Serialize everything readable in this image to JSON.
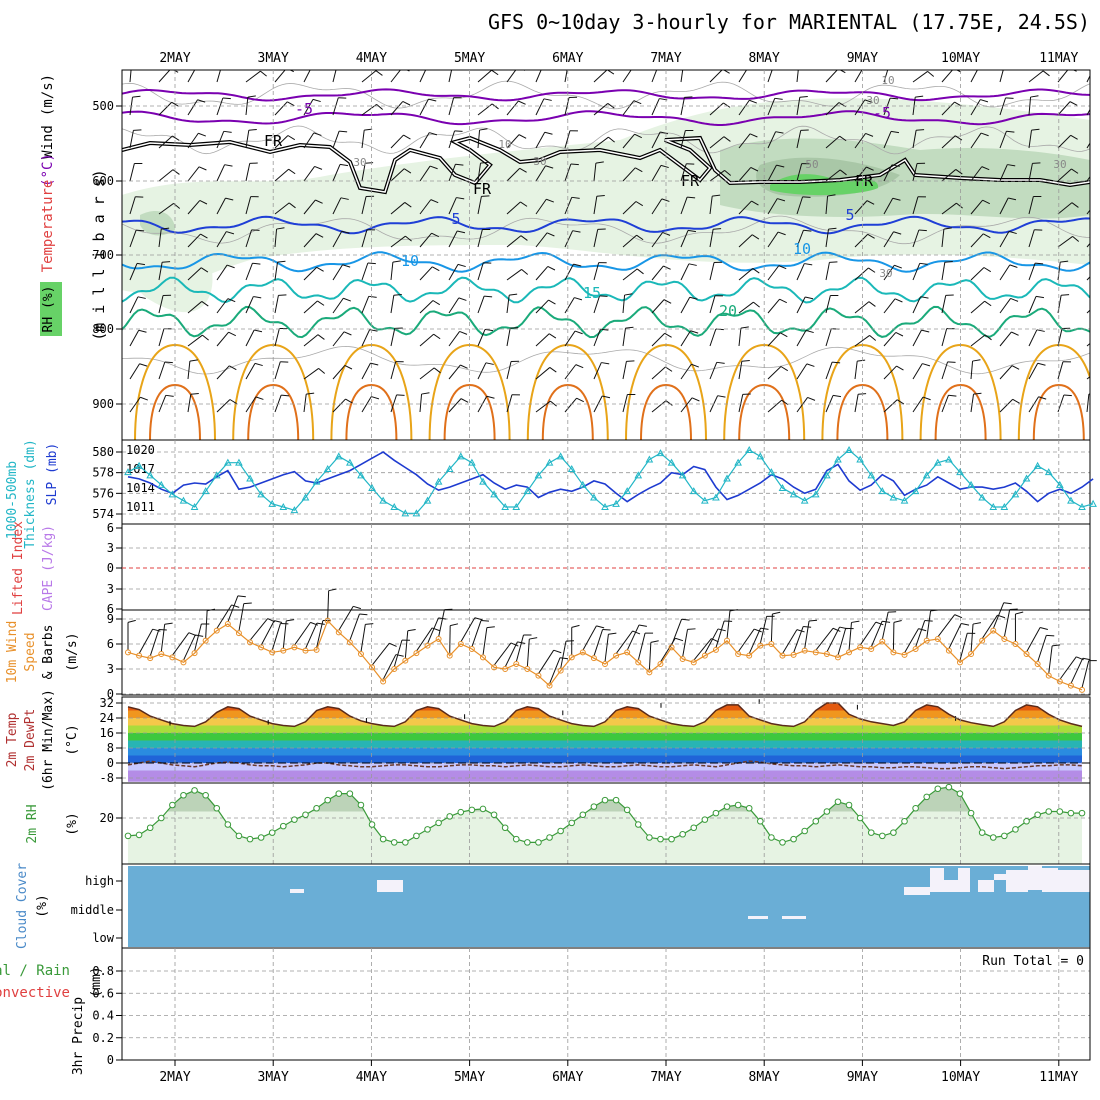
{
  "title": "GFS 0~10day 3-hourly for MARIENTAL (17.75E, 24.5S)",
  "dates": [
    "2MAY",
    "3MAY",
    "4MAY",
    "5MAY",
    "6MAY",
    "7MAY",
    "8MAY",
    "9MAY",
    "10MAY",
    "11MAY"
  ],
  "colors": {
    "rh_light": "#e6f3e3",
    "rh_mid": "#c2dcc0",
    "rh_dark": "#a9c7a7",
    "rh_green": "#67d267",
    "t_neg": "#7a00b0",
    "t_5": "#1f3fd6",
    "t_10": "#1896e6",
    "t_15": "#1ab8b8",
    "t_20": "#1aaa7a",
    "t_warm1": "#e8a418",
    "t_warm2": "#e0701a",
    "thickness": "#1e3bd0",
    "slp": "#22b6c6",
    "wind_speed": "#e8902a",
    "cloud_blue": "#6aaed6",
    "rh2m": "#3a9a3a",
    "cape": "#b878e8",
    "lifted": "#e04040"
  },
  "upper_panel": {
    "ylabel_left": [
      "Wind",
      "(m/s)"
    ],
    "ylabel_temp": "Temperature",
    "ylabel_temp_unit": "(°C)",
    "ylabel_rh": "RH (%)",
    "ylabel_mb": "(m i l l i b a r s)",
    "yticks": [
      "500",
      "600",
      "700",
      "800",
      "900"
    ],
    "contour_labels": [
      "-5",
      "-5",
      "FR",
      "FR",
      "FR",
      "FR",
      "5",
      "5",
      "10",
      "10",
      "15",
      "20",
      "30",
      "50",
      "10",
      "30",
      "30",
      "10",
      "30",
      "30"
    ]
  },
  "chart_data": [
    {
      "type": "line",
      "panel": "thickness_slp",
      "ylabel_thickness": [
        "1000-500mb",
        "Thickness (dm)"
      ],
      "ylabel_slp": "SLP (mb)",
      "yticks_left": [
        "580",
        "578",
        "576",
        "574"
      ],
      "yticks_right": [
        "1020",
        "1017",
        "1014",
        "1011"
      ],
      "ylim_thickness": [
        573.5,
        581
      ],
      "ylim_slp": [
        1008.5,
        1021
      ],
      "series": [
        {
          "values": [
            577.6,
            577.4,
            577.0,
            576.4,
            576.0,
            576.8,
            577.0,
            576.9,
            577.6,
            578.2,
            576.4,
            576.6,
            577.0,
            577.4,
            577.8,
            578.1,
            577.2,
            577.0,
            577.4,
            577.8,
            578.2,
            578.8,
            579.4,
            580.0,
            579.2,
            578.5,
            577.8,
            576.9,
            576.3,
            576.6,
            577.0,
            577.4,
            577.8,
            577.0,
            576.4,
            576.8,
            576.6,
            575.6,
            576.1,
            576.4,
            576.2,
            576.6,
            577.2,
            576.9,
            576.0,
            575.2,
            575.9,
            576.5,
            577.0,
            578.0,
            577.8,
            578.6,
            578.3,
            576.6,
            575.4,
            575.8,
            576.4,
            577.0,
            577.8,
            577.4,
            576.6,
            576.0,
            576.4,
            578.2,
            578.8,
            577.2,
            576.3,
            576.8,
            577.8,
            577.2,
            575.8,
            576.4,
            576.8,
            577.6,
            577.0,
            576.4,
            576.6,
            576.6,
            576.4,
            576.6,
            577.0,
            576.2,
            575.2,
            576.0,
            576.4,
            576.0,
            576.6,
            577.4
          ]
        },
        {
          "values": [
            1016.5,
            1017.5,
            1016,
            1014.5,
            1013,
            1012,
            1011,
            1013.5,
            1016,
            1018,
            1018,
            1015.5,
            1013,
            1011.5,
            1011,
            1010.5,
            1012.5,
            1015,
            1017,
            1019,
            1018,
            1016,
            1014,
            1012,
            1011,
            1010,
            1010,
            1012,
            1015,
            1017,
            1019,
            1018,
            1015,
            1013,
            1011,
            1011,
            1013.5,
            1016,
            1018,
            1019,
            1017,
            1014.5,
            1012.5,
            1011,
            1011.5,
            1013.5,
            1016,
            1018.5,
            1019.5,
            1018,
            1016,
            1013.5,
            1012,
            1012.5,
            1015.5,
            1018,
            1020,
            1019,
            1016.5,
            1014,
            1013,
            1012,
            1013,
            1016,
            1018.5,
            1020,
            1018.5,
            1016,
            1013.5,
            1012.5,
            1012,
            1013.5,
            1016,
            1018,
            1018.5,
            1016.5,
            1014.5,
            1012.5,
            1011,
            1011,
            1013,
            1015.5,
            1017.5,
            1016.5,
            1014.5,
            1012,
            1011,
            1011.5
          ]
        }
      ]
    },
    {
      "type": "line",
      "panel": "cape_lifted",
      "ylabel_lifted": "Lifted Index",
      "ylabel_cape": "CAPE (J/kg)",
      "yticks": [
        "6",
        "3",
        "0",
        "3",
        "6"
      ]
    },
    {
      "type": "line",
      "panel": "wind10m",
      "ylabel": [
        "10m Wind",
        "Speed",
        "& Barbs"
      ],
      "yunit": "(m/s)",
      "yticks": [
        "9",
        "6",
        "3",
        "0"
      ],
      "ylim": [
        0,
        9.5
      ],
      "series": [
        {
          "values": [
            5.0,
            4.6,
            4.3,
            4.8,
            4.4,
            3.8,
            4.9,
            6.4,
            7.6,
            8.4,
            7.3,
            6.2,
            5.6,
            5.0,
            5.2,
            5.6,
            5.2,
            5.3,
            8.8,
            7.4,
            6.2,
            4.8,
            3.2,
            1.5,
            3.0,
            4.0,
            4.9,
            5.8,
            6.6,
            4.6,
            6.0,
            5.4,
            4.4,
            3.2,
            3.0,
            3.6,
            3.0,
            2.2,
            1.0,
            2.8,
            4.4,
            5.0,
            4.3,
            3.6,
            4.6,
            5.0,
            3.8,
            2.6,
            3.6,
            5.6,
            4.2,
            3.8,
            4.6,
            5.3,
            6.4,
            4.8,
            4.6,
            5.8,
            6.0,
            4.6,
            4.7,
            5.2,
            5.0,
            4.8,
            4.4,
            5.0,
            5.6,
            5.4,
            6.3,
            5.0,
            4.7,
            5.4,
            6.4,
            6.6,
            5.2,
            3.8,
            4.8,
            6.4,
            7.6,
            6.6,
            6.0,
            4.8,
            3.6,
            2.2,
            1.5,
            1.0,
            0.5
          ]
        }
      ]
    },
    {
      "type": "area",
      "panel": "temp2m",
      "ylabel": [
        "2m Temp",
        "2m DewPt",
        "(6hr Min/Max)"
      ],
      "yunit": "(°C)",
      "yticks": [
        "32",
        "24",
        "16",
        "8",
        "0",
        "-8"
      ],
      "ylim": [
        -9,
        33
      ],
      "series": [
        {
          "values": [
            30,
            28.5,
            25,
            23,
            21,
            20,
            19.5,
            22,
            27,
            30,
            29,
            25,
            23,
            21,
            20,
            19.5,
            22,
            28,
            30,
            29,
            25,
            22.5,
            21,
            20,
            19.5,
            22,
            28,
            30,
            29,
            25,
            23,
            21,
            20,
            19.5,
            22,
            28,
            30,
            29,
            25,
            23,
            21,
            20,
            19.5,
            22,
            28,
            30,
            29,
            25,
            23,
            21,
            20,
            19.5,
            22,
            28,
            31,
            31,
            25,
            23,
            21,
            20,
            19.5,
            22,
            28,
            32,
            32,
            26,
            23.5,
            22,
            21,
            20,
            22,
            28,
            31,
            30,
            26,
            23,
            21.5,
            20.5,
            19.5,
            22,
            28,
            31,
            30,
            26,
            23,
            21,
            19.5
          ]
        },
        {
          "values": [
            -1,
            0,
            1,
            0,
            -1,
            -1.5,
            -2,
            -1,
            0,
            0.5,
            0,
            -1,
            -1.5,
            -1.5,
            -2,
            -1.5,
            -1,
            0,
            0,
            -1,
            -1.5,
            -2,
            -2,
            -1.5,
            -1,
            -1,
            -1.5,
            -2,
            -2,
            -1.5,
            -1,
            -1,
            -1.5,
            -1.5,
            -2,
            -1.5,
            -1,
            -1.5,
            -2,
            -2,
            -1.5,
            -1,
            -1.5,
            -2,
            -2,
            -1.5,
            -1,
            -1.5,
            -2,
            -2,
            -1.5,
            -1,
            -1.5,
            -2,
            -1,
            0,
            1,
            0.5,
            -0.5,
            -1,
            -1.5,
            -1.5,
            -2,
            -1.5,
            -1,
            -1.5,
            -2,
            -2,
            -2.5,
            -2.5,
            -2,
            -2,
            -2.5,
            -3,
            -3,
            -2.5,
            -2,
            -2,
            -2.5,
            -3,
            -2.5,
            -2,
            -1.5,
            -1.5,
            -1,
            -1,
            -1.5
          ]
        }
      ]
    },
    {
      "type": "line",
      "panel": "rh2m",
      "ylabel": "2m RH",
      "yunit": "(%)",
      "yticks": [
        "20"
      ],
      "ylim": [
        7,
        32
      ],
      "series": [
        {
          "values": [
            14.5,
            14.8,
            17,
            20,
            24,
            27,
            28.5,
            27,
            23,
            18,
            14.5,
            13.5,
            14,
            15.5,
            17.5,
            19.5,
            21,
            23,
            25.5,
            27.5,
            27.5,
            24,
            18,
            13.5,
            12.5,
            12.5,
            14.5,
            16.5,
            18.5,
            20.5,
            21.8,
            22.5,
            22.8,
            21,
            17,
            13.5,
            12.5,
            12.5,
            14,
            16,
            18.5,
            21,
            23.5,
            25.5,
            25.5,
            22.5,
            18,
            14,
            13.5,
            13.5,
            15,
            17,
            19.5,
            21.5,
            23.5,
            24,
            23,
            19,
            14,
            12.5,
            13.5,
            16,
            19,
            22,
            25,
            24,
            20,
            15.5,
            14.5,
            15.5,
            19,
            23,
            26.5,
            29,
            29.5,
            27.5,
            21.5,
            15.5,
            14,
            14.5,
            16.5,
            19,
            21,
            22,
            22,
            21.5,
            21.5
          ]
        }
      ]
    },
    {
      "type": "heatmap",
      "panel": "cloud",
      "ylabel": "Cloud Cover",
      "yunit": "(%)",
      "yticks": [
        "high",
        "middle",
        "low"
      ]
    },
    {
      "type": "bar",
      "panel": "precip",
      "ylabel": [
        "3hr Precip",
        "(mm)"
      ],
      "ylabel_total": "Total / Rain",
      "ylabel_conv": "Convective",
      "yticks": [
        "0.8",
        "0.6",
        "0.4",
        "0.2",
        "0"
      ],
      "ylim": [
        0,
        0.9
      ],
      "run_total": "Run Total = 0"
    }
  ]
}
